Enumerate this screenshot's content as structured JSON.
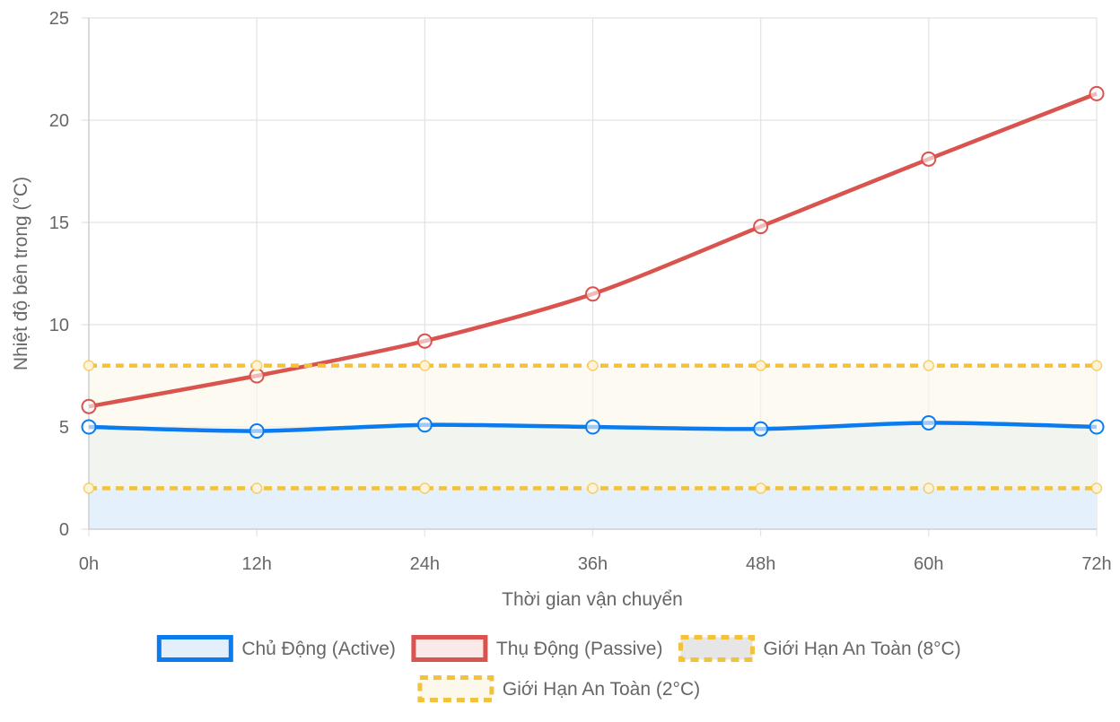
{
  "chart_data": {
    "type": "line",
    "categories": [
      "0h",
      "12h",
      "24h",
      "36h",
      "48h",
      "60h",
      "72h"
    ],
    "xlabel": "Thời gian vận chuyển",
    "ylabel": "Nhiệt độ bên trong (°C)",
    "ylim": [
      0,
      25
    ],
    "yticks": [
      0,
      5,
      10,
      15,
      20,
      25
    ],
    "grid": true,
    "legend_position": "bottom",
    "series": [
      {
        "name": "Chủ Động (Active)",
        "values": [
          5.0,
          4.8,
          5.1,
          5.0,
          4.9,
          5.2,
          5.0
        ],
        "color": "#0a7cf0",
        "fill": "#e3f0fc",
        "dashed": false,
        "fill_mode": "origin"
      },
      {
        "name": "Thụ Động (Passive)",
        "values": [
          6.0,
          7.5,
          9.2,
          11.5,
          14.8,
          18.1,
          21.3
        ],
        "color": "#d9534f",
        "fill": "#fbe9e9",
        "dashed": false,
        "fill_mode": "none"
      },
      {
        "name": "Giới Hạn An Toàn (8°C)",
        "values": [
          8,
          8,
          8,
          8,
          8,
          8,
          8
        ],
        "color": "#f3c13a",
        "fill": "#fbf6e8",
        "dashed": true,
        "fill_mode": "to-next",
        "legend_fill": "#e6e6e6"
      },
      {
        "name": "Giới Hạn An Toàn (2°C)",
        "values": [
          2,
          2,
          2,
          2,
          2,
          2,
          2
        ],
        "color": "#f3c13a",
        "fill": "#fdf8ec",
        "dashed": true,
        "fill_mode": "none"
      }
    ]
  }
}
